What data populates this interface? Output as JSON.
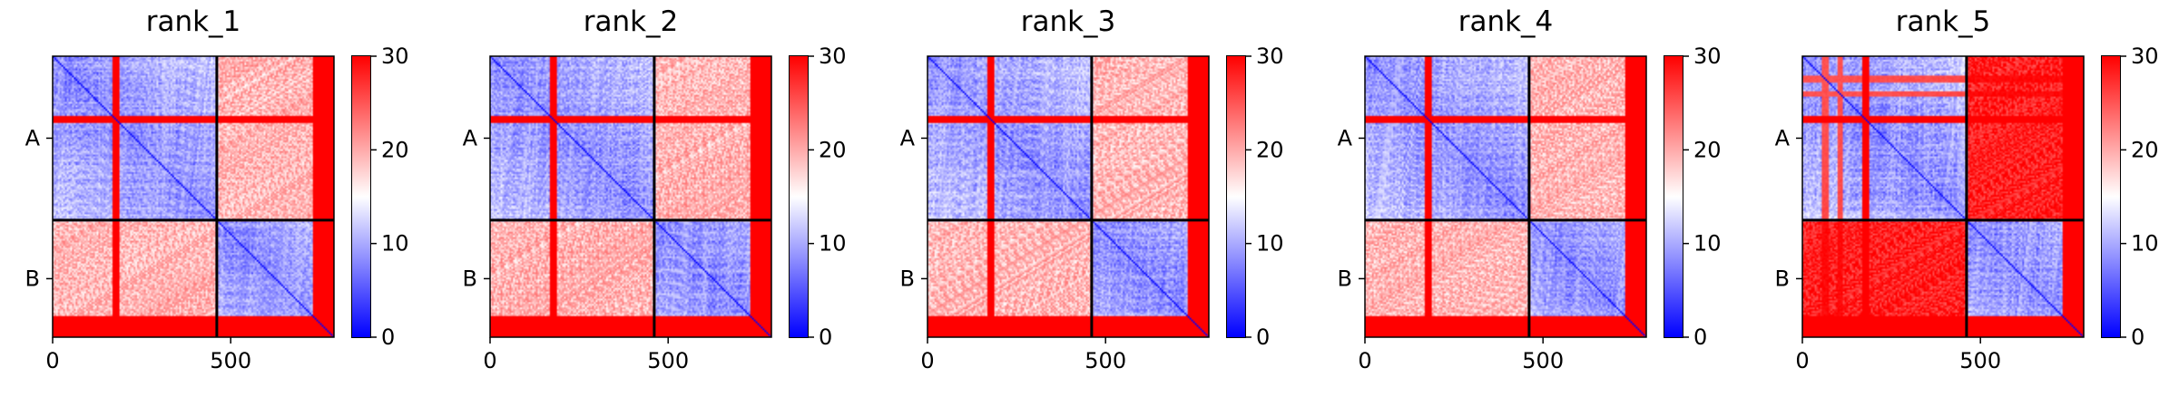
{
  "chart_data": [
    {
      "type": "heatmap",
      "title": "rank_1",
      "chains": [
        "A",
        "B"
      ],
      "chain_boundary": 461,
      "length": 790,
      "xticks": [
        0,
        500
      ],
      "colorbar": {
        "ticks": [
          0,
          10,
          20,
          30
        ],
        "range": [
          0,
          30
        ],
        "colormap": "bwr"
      }
    },
    {
      "type": "heatmap",
      "title": "rank_2",
      "chains": [
        "A",
        "B"
      ],
      "chain_boundary": 461,
      "length": 790,
      "xticks": [
        0,
        500
      ],
      "colorbar": {
        "ticks": [
          0,
          10,
          20,
          30
        ],
        "range": [
          0,
          30
        ],
        "colormap": "bwr"
      }
    },
    {
      "type": "heatmap",
      "title": "rank_3",
      "chains": [
        "A",
        "B"
      ],
      "chain_boundary": 461,
      "length": 790,
      "xticks": [
        0,
        500
      ],
      "colorbar": {
        "ticks": [
          0,
          10,
          20,
          30
        ],
        "range": [
          0,
          30
        ],
        "colormap": "bwr"
      }
    },
    {
      "type": "heatmap",
      "title": "rank_4",
      "chains": [
        "A",
        "B"
      ],
      "chain_boundary": 461,
      "length": 790,
      "xticks": [
        0,
        500
      ],
      "colorbar": {
        "ticks": [
          0,
          10,
          20,
          30
        ],
        "range": [
          0,
          30
        ],
        "colormap": "bwr"
      }
    },
    {
      "type": "heatmap",
      "title": "rank_5",
      "chains": [
        "A",
        "B"
      ],
      "chain_boundary": 461,
      "length": 790,
      "xticks": [
        0,
        500
      ],
      "colorbar": {
        "ticks": [
          0,
          10,
          20,
          30
        ],
        "range": [
          0,
          30
        ],
        "colormap": "bwr"
      }
    }
  ],
  "colors": {
    "low": "#0000ff",
    "mid": "#ffffff",
    "high": "#ff0000",
    "axis": "#000000"
  }
}
